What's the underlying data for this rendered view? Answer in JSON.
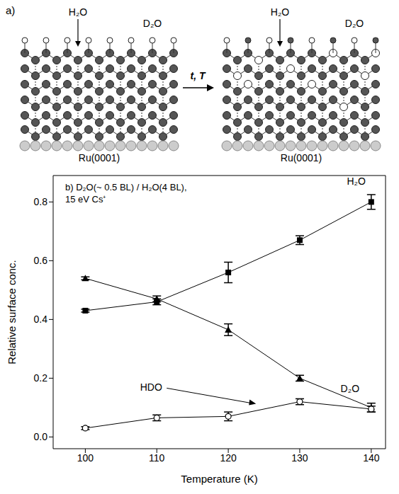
{
  "diagram": {
    "label": "a)",
    "arrow_label": "t, T",
    "panels": [
      {
        "top_left": "H₂O",
        "top_right": "D₂O",
        "substrate": "Ru(0001)",
        "mixed": false
      },
      {
        "top_left": "H₂O",
        "top_right": "D₂O",
        "substrate": "Ru(0001)",
        "mixed": true
      }
    ]
  },
  "chart_data": {
    "type": "line",
    "annotation": [
      "b) D₂O(~ 0.5 BL) / H₂O(4 BL),",
      "15 eV Cs⁺"
    ],
    "x_label": "Temperature (K)",
    "y_label": "Relative surface conc.",
    "x": [
      100,
      110,
      120,
      130,
      140
    ],
    "xlim": [
      95.5,
      142
    ],
    "xticks": [
      100,
      110,
      120,
      130,
      140
    ],
    "ylim": [
      -0.04,
      0.89
    ],
    "yticks": [
      {
        "value": 0,
        "label": "0.0"
      },
      0.2,
      0.4,
      0.6,
      0.8
    ],
    "series": [
      {
        "name": "H₂O",
        "color": "#000000",
        "marker": "square",
        "values": [
          0.43,
          0.46,
          0.56,
          0.67,
          0.8
        ],
        "errors": [
          0.005,
          0.01,
          0.035,
          0.015,
          0.025
        ]
      },
      {
        "name": "D₂O",
        "color": "#000000",
        "marker": "triangle",
        "values": [
          0.54,
          0.47,
          0.365,
          0.2,
          0.1
        ],
        "errors": [
          0.005,
          0.01,
          0.02,
          0.01,
          0.015
        ]
      },
      {
        "name": "HDO",
        "color": "#000000",
        "marker": "open_circle",
        "values": [
          0.03,
          0.065,
          0.07,
          0.12,
          0.095
        ],
        "errors": [
          0.005,
          0.01,
          0.015,
          0.01,
          0.01
        ]
      }
    ]
  }
}
